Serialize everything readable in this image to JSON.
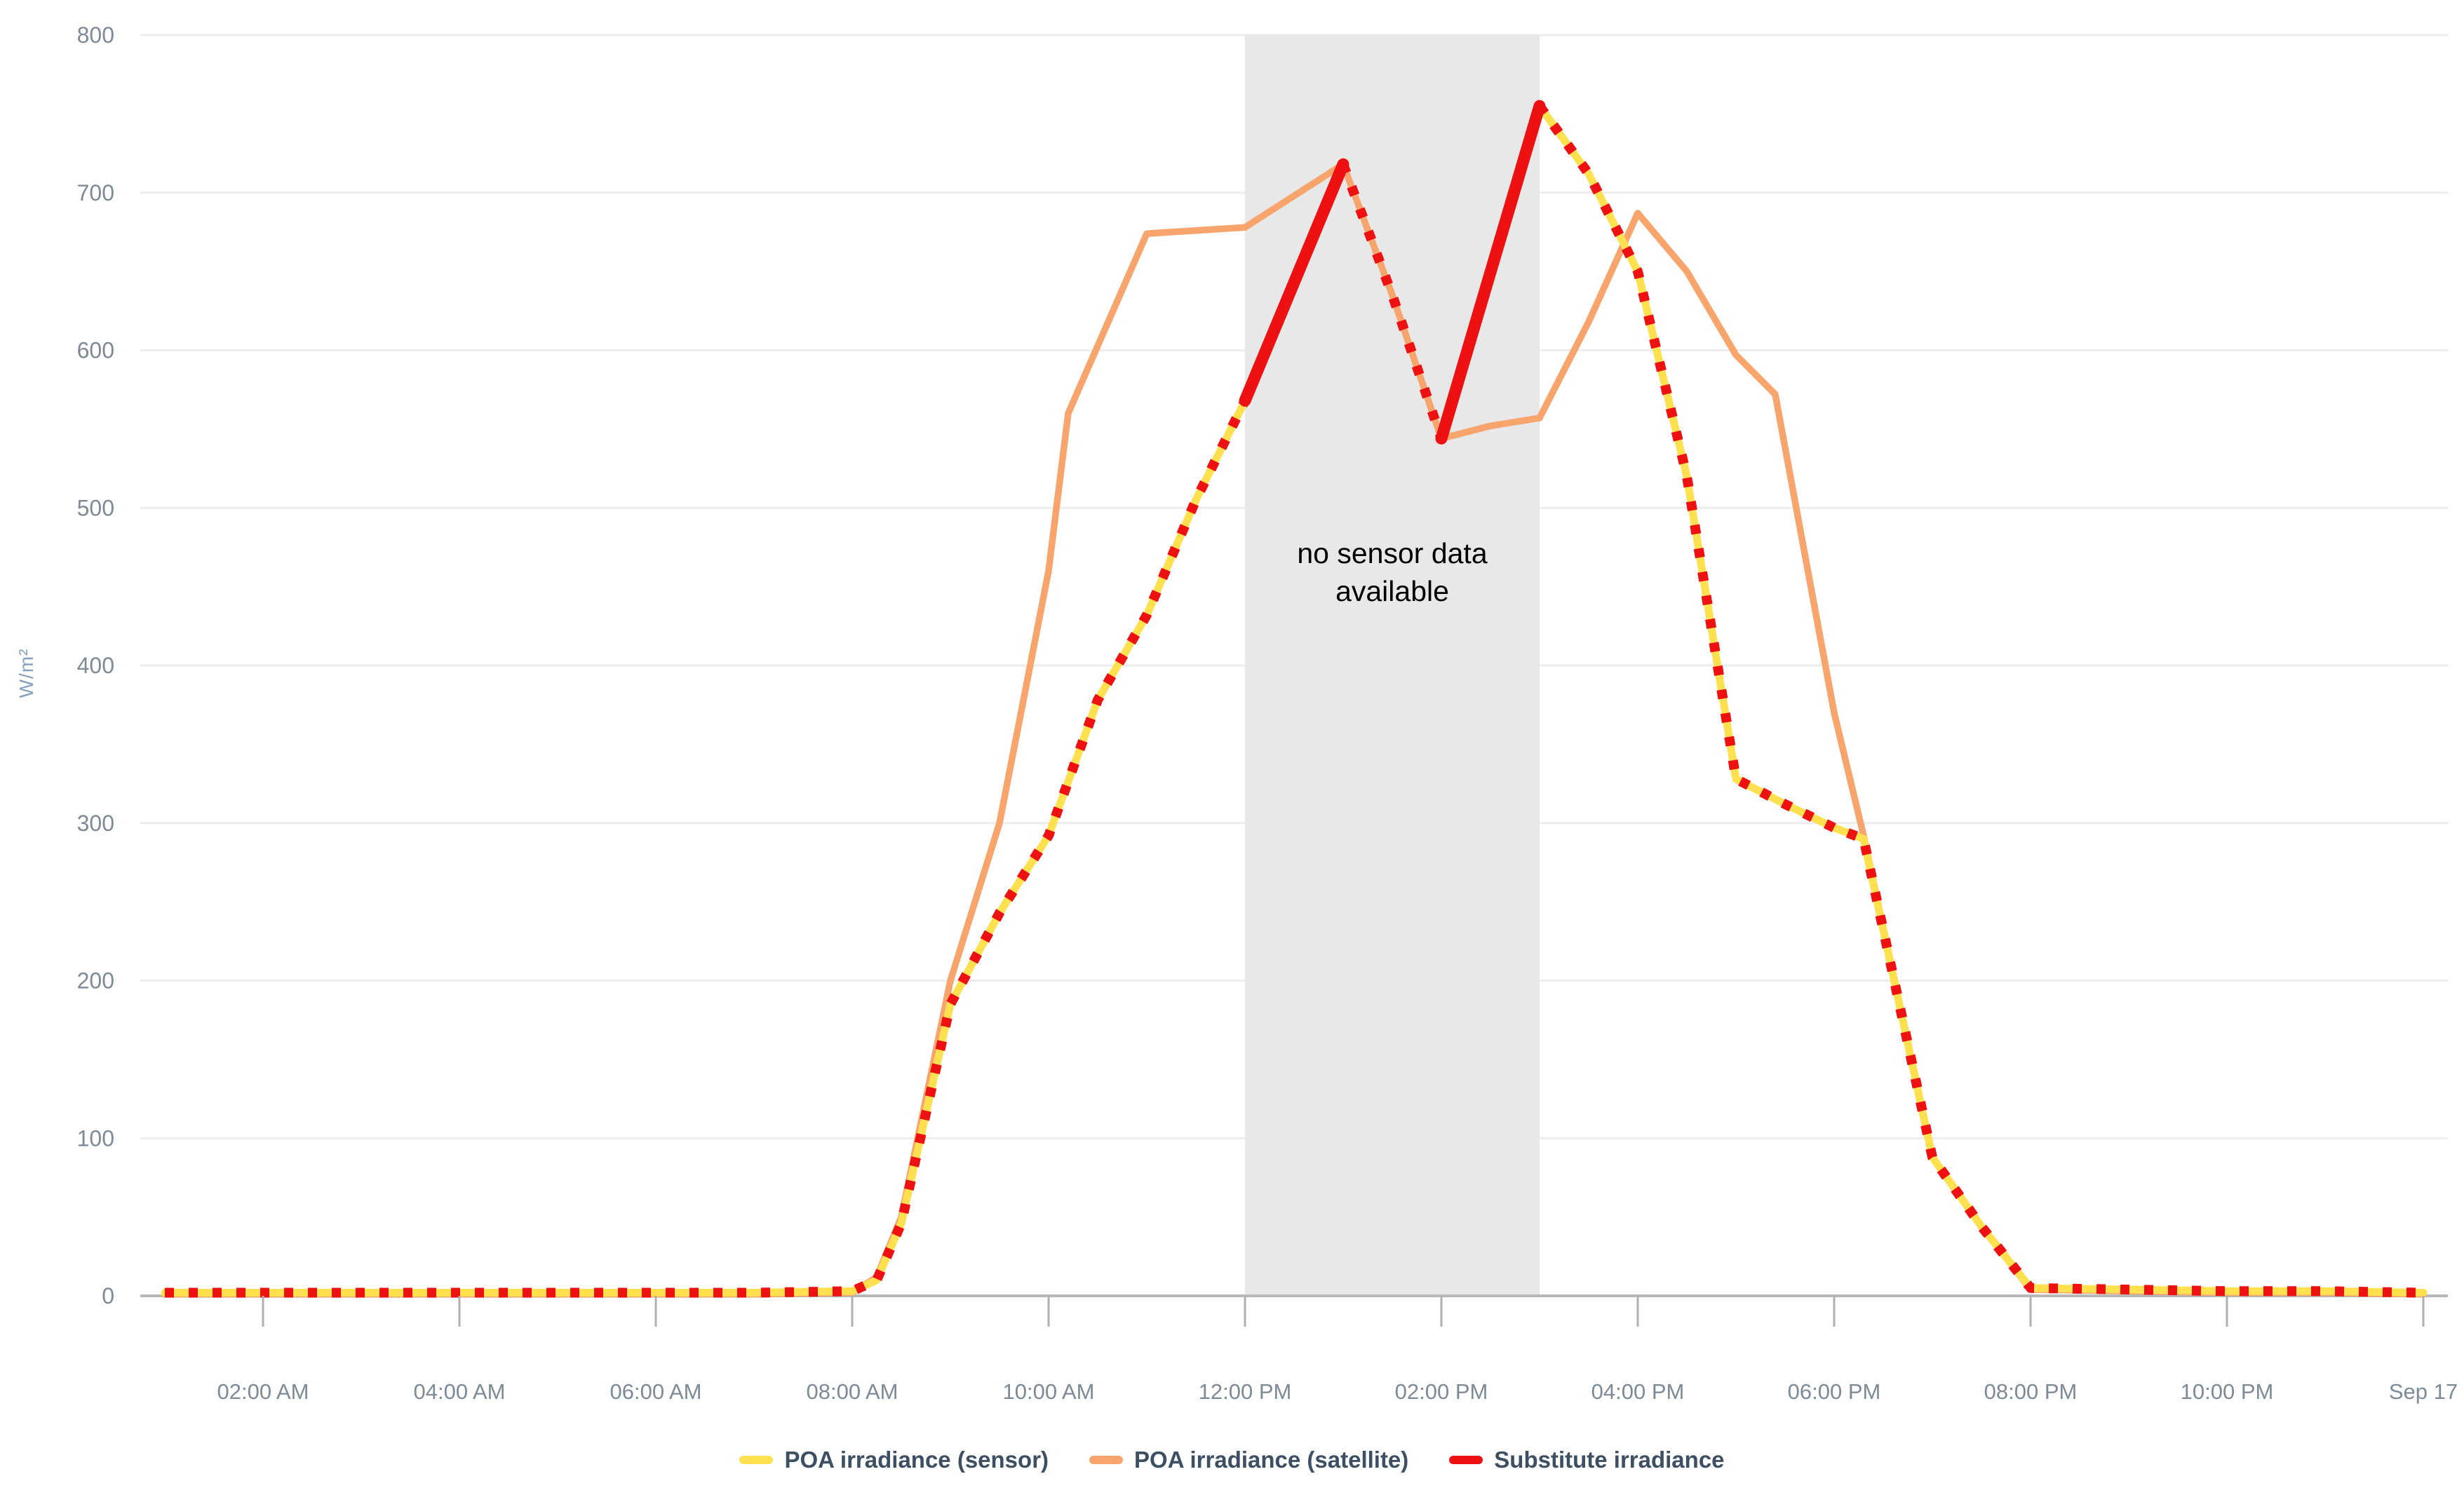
{
  "chart_data": {
    "type": "line",
    "title": "",
    "ylabel": "W/m²",
    "xlabel": "",
    "ylim": [
      0,
      800
    ],
    "yticks": [
      0,
      100,
      200,
      300,
      400,
      500,
      600,
      700,
      800
    ],
    "xlim_hours": [
      0,
      24
    ],
    "grid": true,
    "legend_position": "bottom",
    "xticks": [
      {
        "hour": 2,
        "label": "02:00 AM"
      },
      {
        "hour": 4,
        "label": "04:00 AM"
      },
      {
        "hour": 6,
        "label": "06:00 AM"
      },
      {
        "hour": 8,
        "label": "08:00 AM"
      },
      {
        "hour": 10,
        "label": "10:00 AM"
      },
      {
        "hour": 12,
        "label": "12:00 PM"
      },
      {
        "hour": 14,
        "label": "02:00 PM"
      },
      {
        "hour": 16,
        "label": "04:00 PM"
      },
      {
        "hour": 18,
        "label": "06:00 PM"
      },
      {
        "hour": 20,
        "label": "08:00 PM"
      },
      {
        "hour": 22,
        "label": "10:00 PM"
      },
      {
        "hour": 24,
        "label": "Sep 17"
      }
    ],
    "no_data_band": {
      "start_hour": 12,
      "end_hour": 15,
      "color": "#e8e8e8",
      "text_color": "#000000",
      "label_lines": [
        "no sensor data",
        "available"
      ]
    },
    "series": [
      {
        "name": "POA irradiance (sensor)",
        "color": "#ffe04f",
        "line_style": "solid",
        "segments": [
          [
            [
              1,
              2
            ],
            [
              2,
              2
            ],
            [
              3,
              2
            ],
            [
              4,
              2
            ],
            [
              5,
              2
            ],
            [
              6,
              2
            ],
            [
              7,
              2
            ],
            [
              8,
              3
            ],
            [
              8.25,
              10
            ],
            [
              8.5,
              46
            ],
            [
              9,
              185
            ],
            [
              9.5,
              243
            ],
            [
              10,
              292
            ],
            [
              10.5,
              378
            ],
            [
              11,
              432
            ],
            [
              11.5,
              505
            ],
            [
              12,
              568
            ]
          ],
          [
            [
              15,
              755
            ],
            [
              15.5,
              712
            ],
            [
              16,
              650
            ],
            [
              16.5,
              520
            ],
            [
              17,
              328
            ],
            [
              17.5,
              312
            ],
            [
              18,
              297
            ],
            [
              18.3,
              290
            ],
            [
              19,
              88
            ],
            [
              19.5,
              44
            ],
            [
              20,
              5
            ],
            [
              21,
              4
            ],
            [
              22,
              3
            ],
            [
              23,
              3
            ],
            [
              24,
              2
            ]
          ]
        ]
      },
      {
        "name": "POA irradiance (satellite)",
        "color": "#f7a46d",
        "line_style": "solid",
        "segments": [
          [
            [
              1,
              1
            ],
            [
              2,
              1
            ],
            [
              3,
              1
            ],
            [
              4,
              1
            ],
            [
              5,
              1
            ],
            [
              6,
              1
            ],
            [
              7,
              1
            ],
            [
              8,
              2
            ],
            [
              8.25,
              12
            ],
            [
              8.5,
              50
            ],
            [
              9,
              200
            ],
            [
              9.5,
              300
            ],
            [
              10,
              460
            ],
            [
              10.2,
              560
            ],
            [
              11,
              674
            ],
            [
              11.5,
              676
            ],
            [
              12,
              678
            ],
            [
              13,
              718
            ],
            [
              13.5,
              635
            ],
            [
              14,
              544
            ],
            [
              14.5,
              552
            ],
            [
              15,
              557
            ],
            [
              15.5,
              618
            ],
            [
              16,
              687
            ],
            [
              16.5,
              650
            ],
            [
              17,
              597
            ],
            [
              17.4,
              572
            ],
            [
              18,
              370
            ],
            [
              18.3,
              292
            ],
            [
              19,
              88
            ],
            [
              19.5,
              44
            ],
            [
              20,
              4
            ],
            [
              21,
              3
            ],
            [
              22,
              2
            ],
            [
              23,
              2
            ],
            [
              24,
              1
            ]
          ]
        ]
      },
      {
        "name": "Substitute irradiance",
        "color": "#ee1111",
        "line_style": "dotted overlay on sensor; solid interpolation in gap",
        "overlay_sensor": true,
        "gap_segments": [
          {
            "style": "solid",
            "points": [
              [
                12,
                568
              ],
              [
                13,
                718
              ]
            ]
          },
          {
            "style": "dotted",
            "points": [
              [
                13,
                718
              ],
              [
                13.5,
                635
              ],
              [
                14,
                544
              ]
            ]
          },
          {
            "style": "solid",
            "points": [
              [
                14,
                544
              ],
              [
                15,
                755
              ]
            ]
          }
        ]
      }
    ],
    "axis_style": {
      "tick_label_color": "#7d8a97",
      "ylabel_color": "#85a0ba",
      "grid_color": "#ededed",
      "axis_line_color": "#b8b8b8",
      "tick_color": "#b0b0b0"
    },
    "legend_text_color": "#3d4f63"
  }
}
